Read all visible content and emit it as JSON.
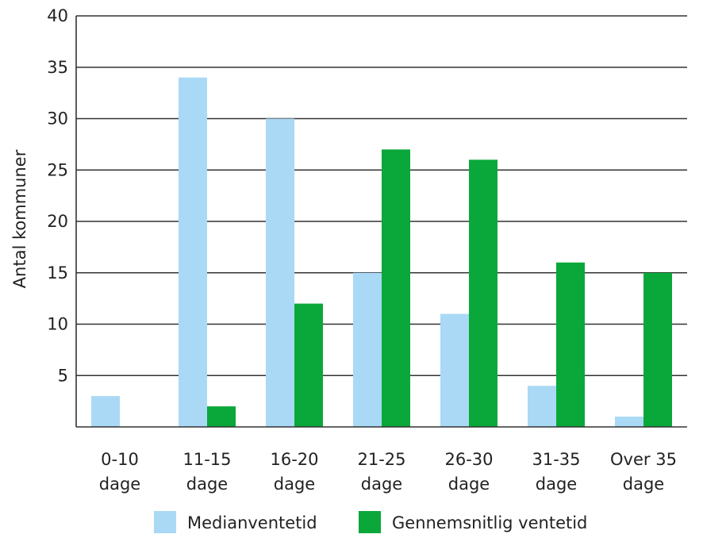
{
  "chart_data": {
    "type": "bar",
    "ylabel": "Antal kommuner",
    "xlabel": "",
    "ylim": [
      0,
      40
    ],
    "yticks": [
      5,
      10,
      15,
      20,
      25,
      30,
      35,
      40
    ],
    "grid": true,
    "legend_position": "bottom",
    "categories": [
      [
        "0-10",
        "dage"
      ],
      [
        "11-15",
        "dage"
      ],
      [
        "16-20",
        "dage"
      ],
      [
        "21-25",
        "dage"
      ],
      [
        "26-30",
        "dage"
      ],
      [
        "31-35",
        "dage"
      ],
      [
        "Over 35",
        "dage"
      ]
    ],
    "series": [
      {
        "name": "Medianventetid",
        "color": "#a9d9f5",
        "values": [
          3,
          34,
          30,
          15,
          11,
          4,
          1
        ]
      },
      {
        "name": "Gennemsnitlig ventetid",
        "color": "#0aa83a",
        "values": [
          0,
          2,
          12,
          27,
          26,
          16,
          15
        ]
      }
    ]
  }
}
